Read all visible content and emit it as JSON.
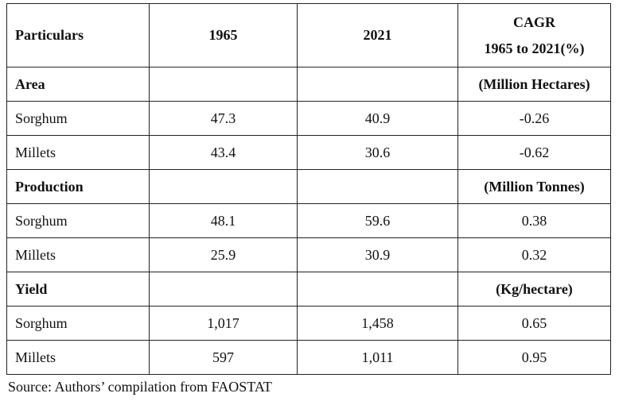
{
  "table": {
    "headers": {
      "particulars": "Particulars",
      "y1965": "1965",
      "y2021": "2021",
      "cagr_line1": "CAGR",
      "cagr_line2": "1965 to 2021(%)"
    },
    "sections": [
      {
        "title": "Area",
        "unit": "(Million Hectares)",
        "rows": [
          {
            "crop": "Sorghum",
            "v1965": "47.3",
            "v2021": "40.9",
            "cagr": "-0.26"
          },
          {
            "crop": "Millets",
            "v1965": "43.4",
            "v2021": "30.6",
            "cagr": "-0.62"
          }
        ]
      },
      {
        "title": "Production",
        "unit": "(Million Tonnes)",
        "rows": [
          {
            "crop": "Sorghum",
            "v1965": "48.1",
            "v2021": "59.6",
            "cagr": "0.38"
          },
          {
            "crop": "Millets",
            "v1965": "25.9",
            "v2021": "30.9",
            "cagr": "0.32"
          }
        ]
      },
      {
        "title": "Yield",
        "unit": "(Kg/hectare)",
        "rows": [
          {
            "crop": "Sorghum",
            "v1965": "1,017",
            "v2021": "1,458",
            "cagr": "0.65"
          },
          {
            "crop": "Millets",
            "v1965": "597",
            "v2021": "1,011",
            "cagr": "0.95"
          }
        ]
      }
    ]
  },
  "source_note": "Source: Authors’ compilation from FAOSTAT"
}
